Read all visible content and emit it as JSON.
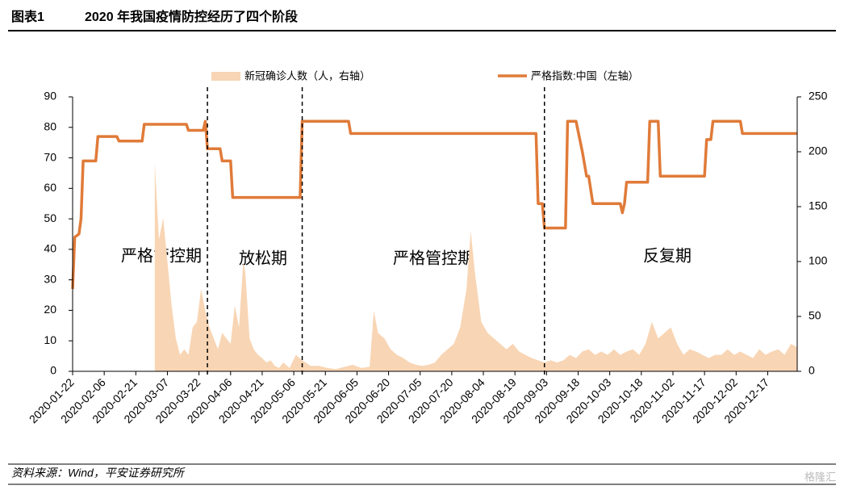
{
  "figure_label": "图表1",
  "chart_data": {
    "type": "line",
    "title": "2020 年我国疫情防控经历了四个阶段",
    "xlim": [
      "2020-01-22",
      "2020-12-31"
    ],
    "xticks": [
      "2020-01-22",
      "2020-02-06",
      "2020-02-21",
      "2020-03-07",
      "2020-03-22",
      "2020-04-06",
      "2020-04-21",
      "2020-05-06",
      "2020-05-21",
      "2020-06-05",
      "2020-06-20",
      "2020-07-05",
      "2020-07-20",
      "2020-08-04",
      "2020-08-19",
      "2020-09-03",
      "2020-09-18",
      "2020-10-03",
      "2020-10-18",
      "2020-11-02",
      "2020-11-17",
      "2020-12-02",
      "2020-12-17"
    ],
    "ylim": [
      0,
      90
    ],
    "yticks": [
      0,
      10,
      20,
      30,
      40,
      50,
      60,
      70,
      80,
      90
    ],
    "y2lim": [
      0,
      250
    ],
    "y2ticks": [
      0,
      50,
      100,
      150,
      200,
      250
    ],
    "grid": false,
    "series": [
      {
        "name": "新冠确诊人数（人，右轴）",
        "type": "area",
        "axis": "y2",
        "color": "#f8d5b4",
        "x": [
          "2020-03-01",
          "2020-03-03",
          "2020-03-05",
          "2020-03-07",
          "2020-03-09",
          "2020-03-11",
          "2020-03-13",
          "2020-03-15",
          "2020-03-17",
          "2020-03-19",
          "2020-03-21",
          "2020-03-23",
          "2020-03-25",
          "2020-03-27",
          "2020-03-29",
          "2020-03-31",
          "2020-04-02",
          "2020-04-04",
          "2020-04-06",
          "2020-04-08",
          "2020-04-10",
          "2020-04-12",
          "2020-04-13",
          "2020-04-15",
          "2020-04-17",
          "2020-04-19",
          "2020-04-21",
          "2020-04-23",
          "2020-04-25",
          "2020-04-27",
          "2020-04-29",
          "2020-05-01",
          "2020-05-04",
          "2020-05-07",
          "2020-05-10",
          "2020-05-14",
          "2020-05-18",
          "2020-05-22",
          "2020-05-26",
          "2020-05-30",
          "2020-06-03",
          "2020-06-07",
          "2020-06-11",
          "2020-06-13",
          "2020-06-15",
          "2020-06-18",
          "2020-06-21",
          "2020-06-24",
          "2020-06-27",
          "2020-06-30",
          "2020-07-03",
          "2020-07-06",
          "2020-07-09",
          "2020-07-12",
          "2020-07-15",
          "2020-07-18",
          "2020-07-21",
          "2020-07-24",
          "2020-07-27",
          "2020-07-29",
          "2020-07-31",
          "2020-08-03",
          "2020-08-06",
          "2020-08-09",
          "2020-08-12",
          "2020-08-15",
          "2020-08-18",
          "2020-08-21",
          "2020-08-24",
          "2020-08-27",
          "2020-08-30",
          "2020-09-02",
          "2020-09-05",
          "2020-09-08",
          "2020-09-11",
          "2020-09-14",
          "2020-09-17",
          "2020-09-20",
          "2020-09-23",
          "2020-09-26",
          "2020-09-29",
          "2020-10-02",
          "2020-10-05",
          "2020-10-08",
          "2020-10-11",
          "2020-10-14",
          "2020-10-17",
          "2020-10-20",
          "2020-10-23",
          "2020-10-26",
          "2020-10-29",
          "2020-11-01",
          "2020-11-04",
          "2020-11-07",
          "2020-11-10",
          "2020-11-13",
          "2020-11-16",
          "2020-11-19",
          "2020-11-22",
          "2020-11-25",
          "2020-11-28",
          "2020-12-01",
          "2020-12-04",
          "2020-12-07",
          "2020-12-10",
          "2020-12-13",
          "2020-12-16",
          "2020-12-19",
          "2020-12-22",
          "2020-12-25",
          "2020-12-28",
          "2020-12-31"
        ],
        "values": [
          190,
          120,
          140,
          100,
          60,
          30,
          15,
          20,
          15,
          40,
          45,
          75,
          55,
          40,
          30,
          20,
          35,
          30,
          25,
          60,
          40,
          100,
          90,
          30,
          20,
          15,
          12,
          8,
          10,
          5,
          3,
          8,
          3,
          15,
          10,
          5,
          5,
          3,
          2,
          4,
          6,
          3,
          4,
          55,
          35,
          30,
          20,
          15,
          12,
          8,
          6,
          5,
          6,
          8,
          15,
          20,
          25,
          40,
          75,
          128,
          90,
          45,
          35,
          30,
          25,
          20,
          25,
          18,
          15,
          12,
          10,
          8,
          10,
          8,
          10,
          15,
          12,
          18,
          20,
          15,
          18,
          15,
          20,
          15,
          18,
          20,
          15,
          25,
          45,
          30,
          35,
          40,
          25,
          15,
          20,
          18,
          15,
          12,
          15,
          15,
          20,
          15,
          18,
          15,
          12,
          20,
          15,
          18,
          20,
          15,
          25,
          22
        ]
      },
      {
        "name": "严格指数:中国（左轴）",
        "type": "line",
        "color": "#e07b39",
        "x": [
          "2020-01-22",
          "2020-01-23",
          "2020-01-25",
          "2020-01-26",
          "2020-01-27",
          "2020-02-02",
          "2020-02-03",
          "2020-02-12",
          "2020-02-13",
          "2020-02-24",
          "2020-02-25",
          "2020-03-16",
          "2020-03-17",
          "2020-03-24",
          "2020-03-25",
          "2020-03-26",
          "2020-04-01",
          "2020-04-02",
          "2020-04-06",
          "2020-04-07",
          "2020-05-09",
          "2020-05-10",
          "2020-06-01",
          "2020-06-02",
          "2020-08-29",
          "2020-08-30",
          "2020-09-01",
          "2020-09-02",
          "2020-09-12",
          "2020-09-13",
          "2020-09-17",
          "2020-09-20",
          "2020-09-22",
          "2020-09-23",
          "2020-09-25",
          "2020-10-08",
          "2020-10-09",
          "2020-10-10",
          "2020-10-11",
          "2020-10-21",
          "2020-10-22",
          "2020-10-26",
          "2020-10-27",
          "2020-11-17",
          "2020-11-18",
          "2020-11-20",
          "2020-11-21",
          "2020-12-04",
          "2020-12-05",
          "2020-12-31"
        ],
        "values": [
          27,
          44,
          45,
          50,
          69,
          69,
          77,
          77,
          75.5,
          75.5,
          81,
          81,
          79,
          79,
          82,
          73,
          73,
          69,
          69,
          57,
          57,
          82,
          82,
          78,
          78,
          55,
          55,
          47,
          47,
          82,
          82,
          72,
          64,
          64,
          55,
          55,
          52,
          55,
          62,
          62,
          82,
          82,
          64,
          64,
          76,
          76,
          82,
          82,
          78,
          78
        ]
      }
    ],
    "vlines": [
      "2020-03-26",
      "2020-05-10",
      "2020-09-02"
    ],
    "annotations": [
      "严格管控期",
      "放松期",
      "严格管控期",
      "反复期"
    ]
  },
  "source": "资料来源：Wind，平安证券研究所",
  "watermark": "格隆汇"
}
